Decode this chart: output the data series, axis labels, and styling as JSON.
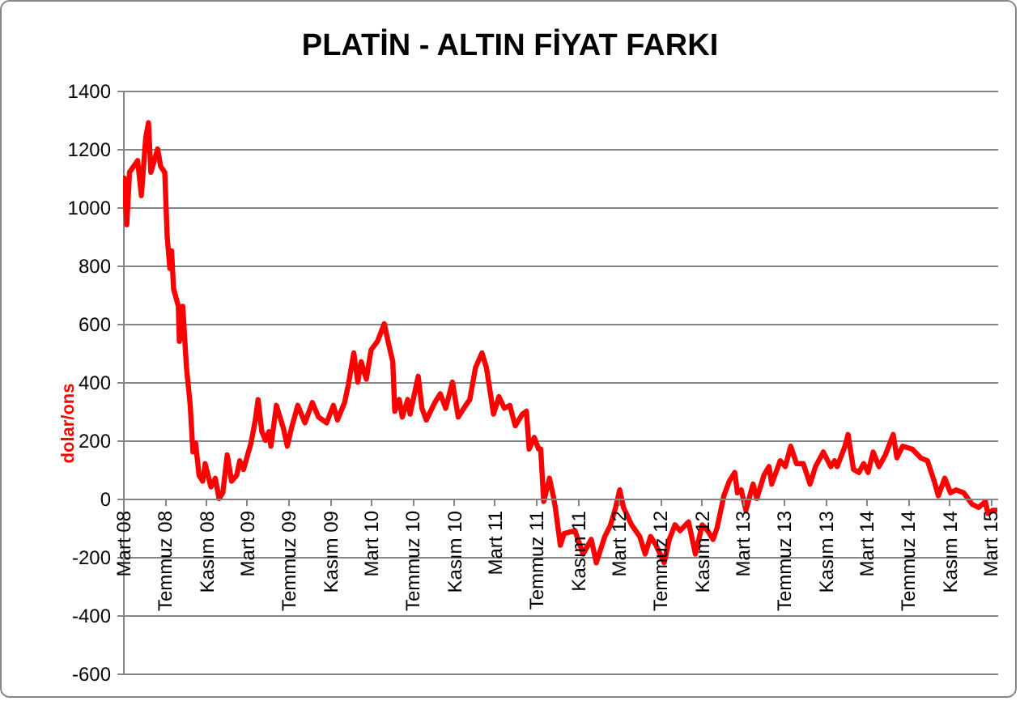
{
  "chart_data": {
    "type": "line",
    "title": "PLATİN - ALTIN FİYAT FARKI",
    "ylabel": "dolar/ons",
    "x": [
      "2008-03-04",
      "2008-03-12",
      "2008-03-20",
      "2008-04-13",
      "2008-04-24",
      "2008-05-07",
      "2008-05-15",
      "2008-05-22",
      "2008-06-11",
      "2008-06-20",
      "2008-07-02",
      "2008-07-09",
      "2008-07-17",
      "2008-07-22",
      "2008-07-28",
      "2008-08-11",
      "2008-08-14",
      "2008-08-24",
      "2008-09-04",
      "2008-09-15",
      "2008-09-23",
      "2008-10-01",
      "2008-10-11",
      "2008-10-22",
      "2008-10-29",
      "2008-11-15",
      "2008-11-28",
      "2008-12-09",
      "2008-12-20",
      "2009-01-02",
      "2009-01-15",
      "2009-01-30",
      "2009-02-08",
      "2009-02-19",
      "2009-03-13",
      "2009-03-26",
      "2009-04-03",
      "2009-04-14",
      "2009-04-25",
      "2009-05-05",
      "2009-05-11",
      "2009-05-27",
      "2009-06-17",
      "2009-06-28",
      "2009-07-10",
      "2009-07-29",
      "2009-08-19",
      "2009-09-10",
      "2009-09-28",
      "2009-10-22",
      "2009-11-11",
      "2009-11-23",
      "2009-12-14",
      "2009-12-25",
      "2010-01-10",
      "2010-01-22",
      "2010-02-01",
      "2010-02-16",
      "2010-03-02",
      "2010-03-21",
      "2010-04-10",
      "2010-04-23",
      "2010-05-05",
      "2010-05-11",
      "2010-05-24",
      "2010-06-02",
      "2010-06-18",
      "2010-06-25",
      "2010-07-19",
      "2010-07-30",
      "2010-08-12",
      "2010-09-06",
      "2010-09-22",
      "2010-10-08",
      "2010-10-28",
      "2010-11-14",
      "2010-12-06",
      "2010-12-18",
      "2011-01-04",
      "2011-01-23",
      "2011-02-05",
      "2011-02-13",
      "2011-02-26",
      "2011-03-14",
      "2011-03-30",
      "2011-04-15",
      "2011-05-01",
      "2011-05-22",
      "2011-06-03",
      "2011-06-11",
      "2011-06-26",
      "2011-07-09",
      "2011-07-15",
      "2011-07-24",
      "2011-08-10",
      "2011-08-21",
      "2011-08-27",
      "2011-09-11",
      "2011-09-22",
      "2011-10-24",
      "2011-11-17",
      "2011-12-11",
      "2011-12-26",
      "2012-01-20",
      "2012-02-06",
      "2012-02-21",
      "2012-03-04",
      "2012-03-15",
      "2012-04-08",
      "2012-05-02",
      "2012-05-18",
      "2012-06-03",
      "2012-06-19",
      "2012-07-13",
      "2012-07-28",
      "2012-08-14",
      "2012-08-29",
      "2012-09-23",
      "2012-10-13",
      "2012-11-02",
      "2012-11-18",
      "2012-12-04",
      "2012-12-16",
      "2013-01-05",
      "2013-01-21",
      "2013-02-06",
      "2013-02-14",
      "2013-02-25",
      "2013-03-11",
      "2013-04-01",
      "2013-04-12",
      "2013-05-03",
      "2013-05-18",
      "2013-05-26",
      "2013-06-20",
      "2013-07-05",
      "2013-07-21",
      "2013-08-07",
      "2013-08-27",
      "2013-09-16",
      "2013-10-02",
      "2013-10-25",
      "2013-11-16",
      "2013-11-27",
      "2013-12-05",
      "2013-12-28",
      "2014-01-06",
      "2014-01-22",
      "2014-02-07",
      "2014-02-21",
      "2014-03-06",
      "2014-03-21",
      "2014-04-07",
      "2014-04-26",
      "2014-05-19",
      "2014-05-30",
      "2014-06-16",
      "2014-07-14",
      "2014-08-08",
      "2014-08-28",
      "2014-09-17",
      "2014-09-29",
      "2014-10-18",
      "2014-11-04",
      "2014-11-20",
      "2014-12-13",
      "2015-01-07",
      "2015-01-26",
      "2015-02-15",
      "2015-02-22",
      "2015-03-09",
      "2015-03-22"
    ],
    "values": [
      1100,
      940,
      1120,
      1160,
      1040,
      1240,
      1290,
      1120,
      1200,
      1140,
      1120,
      900,
      790,
      850,
      720,
      660,
      540,
      660,
      450,
      320,
      160,
      190,
      80,
      60,
      120,
      40,
      70,
      0,
      20,
      150,
      60,
      80,
      130,
      100,
      190,
      270,
      340,
      230,
      200,
      230,
      180,
      320,
      240,
      180,
      240,
      320,
      260,
      330,
      280,
      260,
      320,
      270,
      330,
      390,
      500,
      400,
      470,
      410,
      510,
      540,
      600,
      530,
      470,
      300,
      340,
      280,
      340,
      290,
      420,
      310,
      270,
      330,
      360,
      310,
      400,
      280,
      320,
      340,
      450,
      500,
      450,
      390,
      290,
      350,
      310,
      320,
      250,
      290,
      300,
      170,
      210,
      170,
      170,
      -10,
      70,
      10,
      -30,
      -160,
      -120,
      -110,
      -190,
      -140,
      -220,
      -130,
      -90,
      -30,
      30,
      -30,
      -90,
      -130,
      -190,
      -130,
      -160,
      -220,
      -140,
      -90,
      -110,
      -80,
      -190,
      -90,
      -110,
      -140,
      -100,
      10,
      60,
      90,
      20,
      30,
      -40,
      50,
      0,
      80,
      110,
      50,
      130,
      110,
      180,
      120,
      120,
      50,
      110,
      160,
      110,
      130,
      110,
      180,
      220,
      100,
      90,
      120,
      90,
      160,
      110,
      150,
      220,
      140,
      180,
      170,
      140,
      130,
      60,
      10,
      70,
      20,
      30,
      20,
      -20,
      -30,
      -10,
      -50,
      -40,
      -40
    ],
    "color": "#ff0000",
    "xlim": [
      "2008-03-01",
      "2015-03-22"
    ],
    "xticks": [
      {
        "value": "2008-03-01",
        "label": "Mart 08"
      },
      {
        "value": "2008-07-01",
        "label": "Temmuz 08"
      },
      {
        "value": "2008-11-01",
        "label": "Kasım 08"
      },
      {
        "value": "2009-03-01",
        "label": "Mart 09"
      },
      {
        "value": "2009-07-01",
        "label": "Temmuz 09"
      },
      {
        "value": "2009-11-01",
        "label": "Kasım 09"
      },
      {
        "value": "2010-03-01",
        "label": "Mart 10"
      },
      {
        "value": "2010-07-01",
        "label": "Temmuz 10"
      },
      {
        "value": "2010-11-01",
        "label": "Kasım 10"
      },
      {
        "value": "2011-03-01",
        "label": "Mart 11"
      },
      {
        "value": "2011-07-01",
        "label": "Temmuz 11"
      },
      {
        "value": "2011-11-01",
        "label": "Kasım 11"
      },
      {
        "value": "2012-03-01",
        "label": "Mart 12"
      },
      {
        "value": "2012-07-01",
        "label": "Temmuz 12"
      },
      {
        "value": "2012-11-01",
        "label": "Kasım 12"
      },
      {
        "value": "2013-03-01",
        "label": "Mart 13"
      },
      {
        "value": "2013-07-01",
        "label": "Temmuz 13"
      },
      {
        "value": "2013-11-01",
        "label": "Kasım 13"
      },
      {
        "value": "2014-03-01",
        "label": "Mart 14"
      },
      {
        "value": "2014-07-01",
        "label": "Temmuz 14"
      },
      {
        "value": "2014-11-01",
        "label": "Kasım 14"
      },
      {
        "value": "2015-03-01",
        "label": "Mart 15"
      }
    ],
    "ylim": [
      -600,
      1400
    ],
    "yticks": [
      -600,
      -400,
      -200,
      0,
      200,
      400,
      600,
      800,
      1000,
      1200,
      1400
    ],
    "grid": "y"
  }
}
